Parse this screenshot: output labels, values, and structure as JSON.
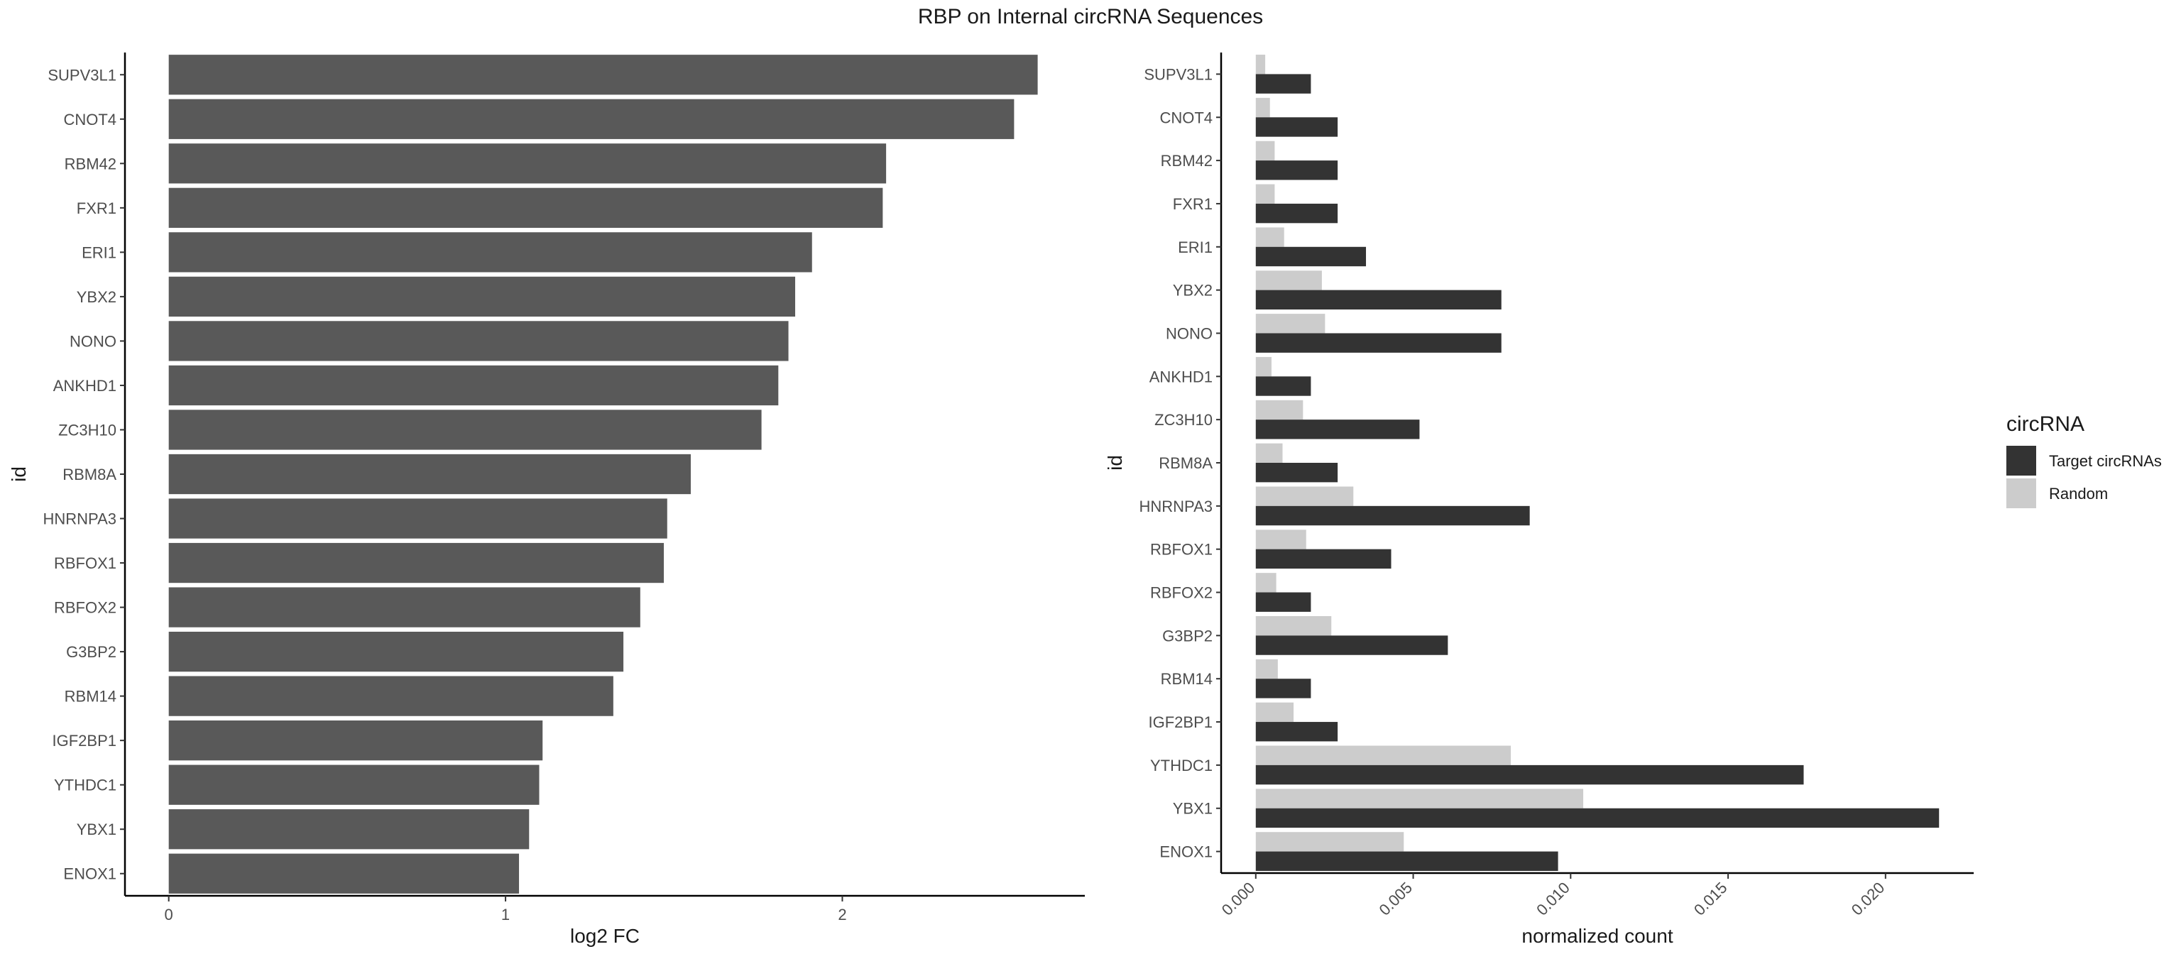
{
  "title": "RBP on Internal circRNA Sequences",
  "chart_data": [
    {
      "type": "bar",
      "orientation": "horizontal",
      "categories": [
        "SUPV3L1",
        "CNOT4",
        "RBM42",
        "FXR1",
        "ERI1",
        "YBX2",
        "NONO",
        "ANKHD1",
        "ZC3H10",
        "RBM8A",
        "HNRNPA3",
        "RBFOX1",
        "RBFOX2",
        "G3BP2",
        "RBM14",
        "IGF2BP1",
        "YTHDC1",
        "YBX1",
        "ENOX1"
      ],
      "values": [
        2.58,
        2.51,
        2.13,
        2.12,
        1.91,
        1.86,
        1.84,
        1.81,
        1.76,
        1.55,
        1.48,
        1.47,
        1.4,
        1.35,
        1.32,
        1.11,
        1.1,
        1.07,
        1.04
      ],
      "color": "#595959",
      "xlabel": "log2 FC",
      "ylabel": "id",
      "xlim": [
        -0.13,
        2.72
      ],
      "xticks": [
        0,
        1,
        2
      ],
      "xtick_labels": [
        "0",
        "1",
        "2"
      ],
      "grid": false
    },
    {
      "type": "bar",
      "orientation": "horizontal",
      "grouped": true,
      "categories": [
        "SUPV3L1",
        "CNOT4",
        "RBM42",
        "FXR1",
        "ERI1",
        "YBX2",
        "NONO",
        "ANKHD1",
        "ZC3H10",
        "RBM8A",
        "HNRNPA3",
        "RBFOX1",
        "RBFOX2",
        "G3BP2",
        "RBM14",
        "IGF2BP1",
        "YTHDC1",
        "YBX1",
        "ENOX1"
      ],
      "series": [
        {
          "name": "Target circRNAs",
          "color": "#333333",
          "values": [
            0.00175,
            0.0026,
            0.0026,
            0.0026,
            0.0035,
            0.0078,
            0.0078,
            0.00175,
            0.0052,
            0.0026,
            0.0087,
            0.0043,
            0.00175,
            0.0061,
            0.00175,
            0.0026,
            0.0174,
            0.0217,
            0.0096
          ]
        },
        {
          "name": "Random",
          "color": "#cccccc",
          "values": [
            0.0003,
            0.00045,
            0.0006,
            0.0006,
            0.0009,
            0.0021,
            0.0022,
            0.0005,
            0.0015,
            0.00085,
            0.0031,
            0.0016,
            0.00065,
            0.0024,
            0.0007,
            0.0012,
            0.0081,
            0.0104,
            0.0047
          ]
        }
      ],
      "xlabel": "normalized count",
      "ylabel": "id",
      "xlim": [
        -0.0011,
        0.0228
      ],
      "xticks": [
        0,
        0.005,
        0.01,
        0.015,
        0.02
      ],
      "xtick_labels": [
        "0.000",
        "0.005",
        "0.010",
        "0.015",
        "0.020"
      ],
      "legend": {
        "title": "circRNA",
        "placement": "right",
        "entries": [
          "Target circRNAs",
          "Random"
        ]
      },
      "grid": false
    }
  ]
}
